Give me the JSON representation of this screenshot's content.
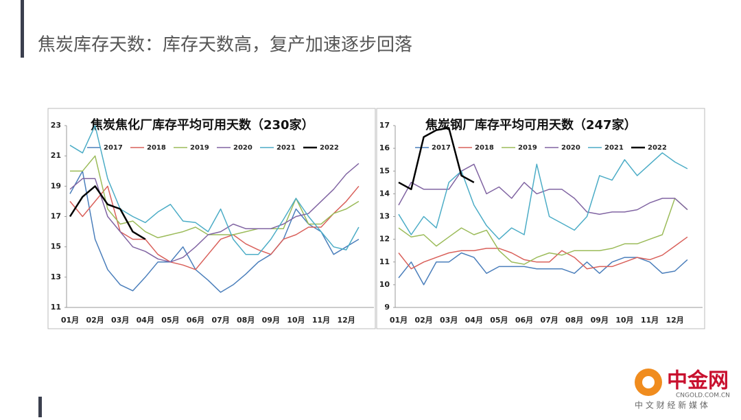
{
  "header": {
    "title": "焦炭库存天数：库存天数高，复产加速逐步回落"
  },
  "chart_data": [
    {
      "type": "line",
      "title": "焦炭焦化厂库存平均可用天数（230家）",
      "categories": [
        "01月",
        null,
        "02月",
        null,
        "03月",
        null,
        "04月",
        null,
        "05月",
        null,
        "06月",
        null,
        "07月",
        null,
        "08月",
        null,
        "09月",
        null,
        "10月",
        null,
        "11月",
        null,
        "12月",
        null
      ],
      "ylim": [
        11,
        23
      ],
      "yticks": [
        11,
        13,
        15,
        17,
        19,
        21,
        23
      ],
      "series": [
        {
          "name": "2017",
          "color": "#4a7ebb",
          "values": [
            18.5,
            20,
            15.5,
            13.5,
            12.5,
            12.1,
            13,
            14,
            14,
            15,
            13.5,
            12.8,
            12,
            12.5,
            13.2,
            14,
            14.5,
            15.5,
            17.5,
            16.5,
            16,
            14.5,
            15,
            15.5
          ]
        },
        {
          "name": "2018",
          "color": "#d9605a",
          "values": [
            18,
            17,
            18,
            19,
            16,
            15.5,
            15.5,
            14.5,
            14,
            13.8,
            13.5,
            14.5,
            15.5,
            15.8,
            15.2,
            14.8,
            14.5,
            15.5,
            15.8,
            16.3,
            16.3,
            17.2,
            18,
            19
          ]
        },
        {
          "name": "2019",
          "color": "#9bbb59",
          "values": [
            20,
            20,
            21,
            17.5,
            16.5,
            16.7,
            16,
            15.6,
            15.8,
            16,
            16.3,
            15.8,
            15.8,
            15.8,
            16,
            16.2,
            16.2,
            16.2,
            18.2,
            16.5,
            16.5,
            17.2,
            17.5,
            18
          ]
        },
        {
          "name": "2020",
          "color": "#8064a2",
          "values": [
            18.8,
            19.5,
            19.5,
            17,
            16,
            15,
            14.7,
            14.2,
            14,
            14.3,
            15,
            15.8,
            16,
            16.5,
            16.2,
            16.2,
            16.2,
            16.5,
            17,
            17.2,
            18,
            18.8,
            19.8,
            20.5
          ]
        },
        {
          "name": "2021",
          "color": "#4bacc6",
          "values": [
            21.7,
            21.2,
            23,
            19.5,
            17.5,
            17,
            16.6,
            17.3,
            17.8,
            16.7,
            16.6,
            16,
            17.5,
            15.5,
            14.5,
            14.5,
            15.5,
            16.8,
            18.2,
            17,
            16,
            15,
            14.8,
            16.3
          ]
        },
        {
          "name": "2022",
          "color": "#000000",
          "values": [
            17,
            18.3,
            19,
            17.8,
            17.5,
            16,
            15.5,
            null,
            null,
            null,
            null,
            null,
            null,
            null,
            null,
            null,
            null,
            null,
            null,
            null,
            null,
            null,
            null,
            null
          ]
        }
      ]
    },
    {
      "type": "line",
      "title": "焦炭钢厂库存平均可用天数（247家）",
      "categories": [
        "01月",
        null,
        "02月",
        null,
        "03月",
        null,
        "04月",
        null,
        "05月",
        null,
        "06月",
        null,
        "07月",
        null,
        "08月",
        null,
        "09月",
        null,
        "10月",
        null,
        "11月",
        null,
        "12月",
        null
      ],
      "ylim": [
        9,
        17
      ],
      "yticks": [
        9,
        10,
        11,
        12,
        13,
        14,
        15,
        16,
        17
      ],
      "series": [
        {
          "name": "2017",
          "color": "#4a7ebb",
          "values": [
            10.3,
            11,
            10,
            11,
            11,
            11.4,
            11.2,
            10.5,
            10.8,
            10.8,
            10.8,
            10.7,
            10.7,
            10.7,
            10.5,
            11,
            10.5,
            11,
            11.2,
            11.2,
            11,
            10.5,
            10.6,
            11.1
          ]
        },
        {
          "name": "2018",
          "color": "#d9605a",
          "values": [
            11.4,
            10.7,
            11,
            11.2,
            11.4,
            11.5,
            11.5,
            11.6,
            11.6,
            11.4,
            11.1,
            11,
            11,
            11.5,
            11.2,
            10.7,
            10.8,
            10.8,
            11,
            11.2,
            11.1,
            11.3,
            11.7,
            12.1
          ]
        },
        {
          "name": "2019",
          "color": "#9bbb59",
          "values": [
            12.5,
            12.1,
            12.2,
            11.7,
            12.1,
            12.5,
            12.2,
            12.4,
            11.5,
            11,
            10.9,
            11.2,
            11.4,
            11.3,
            11.5,
            11.5,
            11.5,
            11.6,
            11.8,
            11.8,
            12,
            12.2,
            13.8,
            13.3
          ]
        },
        {
          "name": "2020",
          "color": "#8064a2",
          "values": [
            13.5,
            14.5,
            14.2,
            14.2,
            14.2,
            15,
            15.3,
            14,
            14.3,
            13.8,
            14.5,
            14,
            14.2,
            14.2,
            13.8,
            13.2,
            13.1,
            13.2,
            13.2,
            13.3,
            13.6,
            13.8,
            13.8,
            13.3
          ]
        },
        {
          "name": "2021",
          "color": "#4bacc6",
          "values": [
            13.1,
            12.2,
            13,
            12.5,
            14.5,
            15,
            13.5,
            12.6,
            12,
            12.5,
            12.2,
            15.3,
            13,
            12.7,
            12.4,
            13,
            14.8,
            14.6,
            15.5,
            14.8,
            15.3,
            15.8,
            15.4,
            15.1
          ]
        },
        {
          "name": "2022",
          "color": "#000000",
          "values": [
            14.5,
            14.2,
            16.5,
            16.8,
            16.9,
            14.8,
            14.5,
            null,
            null,
            null,
            null,
            null,
            null,
            null,
            null,
            null,
            null,
            null,
            null,
            null,
            null,
            null,
            null,
            null
          ]
        }
      ]
    }
  ],
  "footer": {
    "logo": "中金网",
    "domain": "CNGOLD.COM.CN",
    "slogan": "中 文 财 经 新 媒 体"
  }
}
